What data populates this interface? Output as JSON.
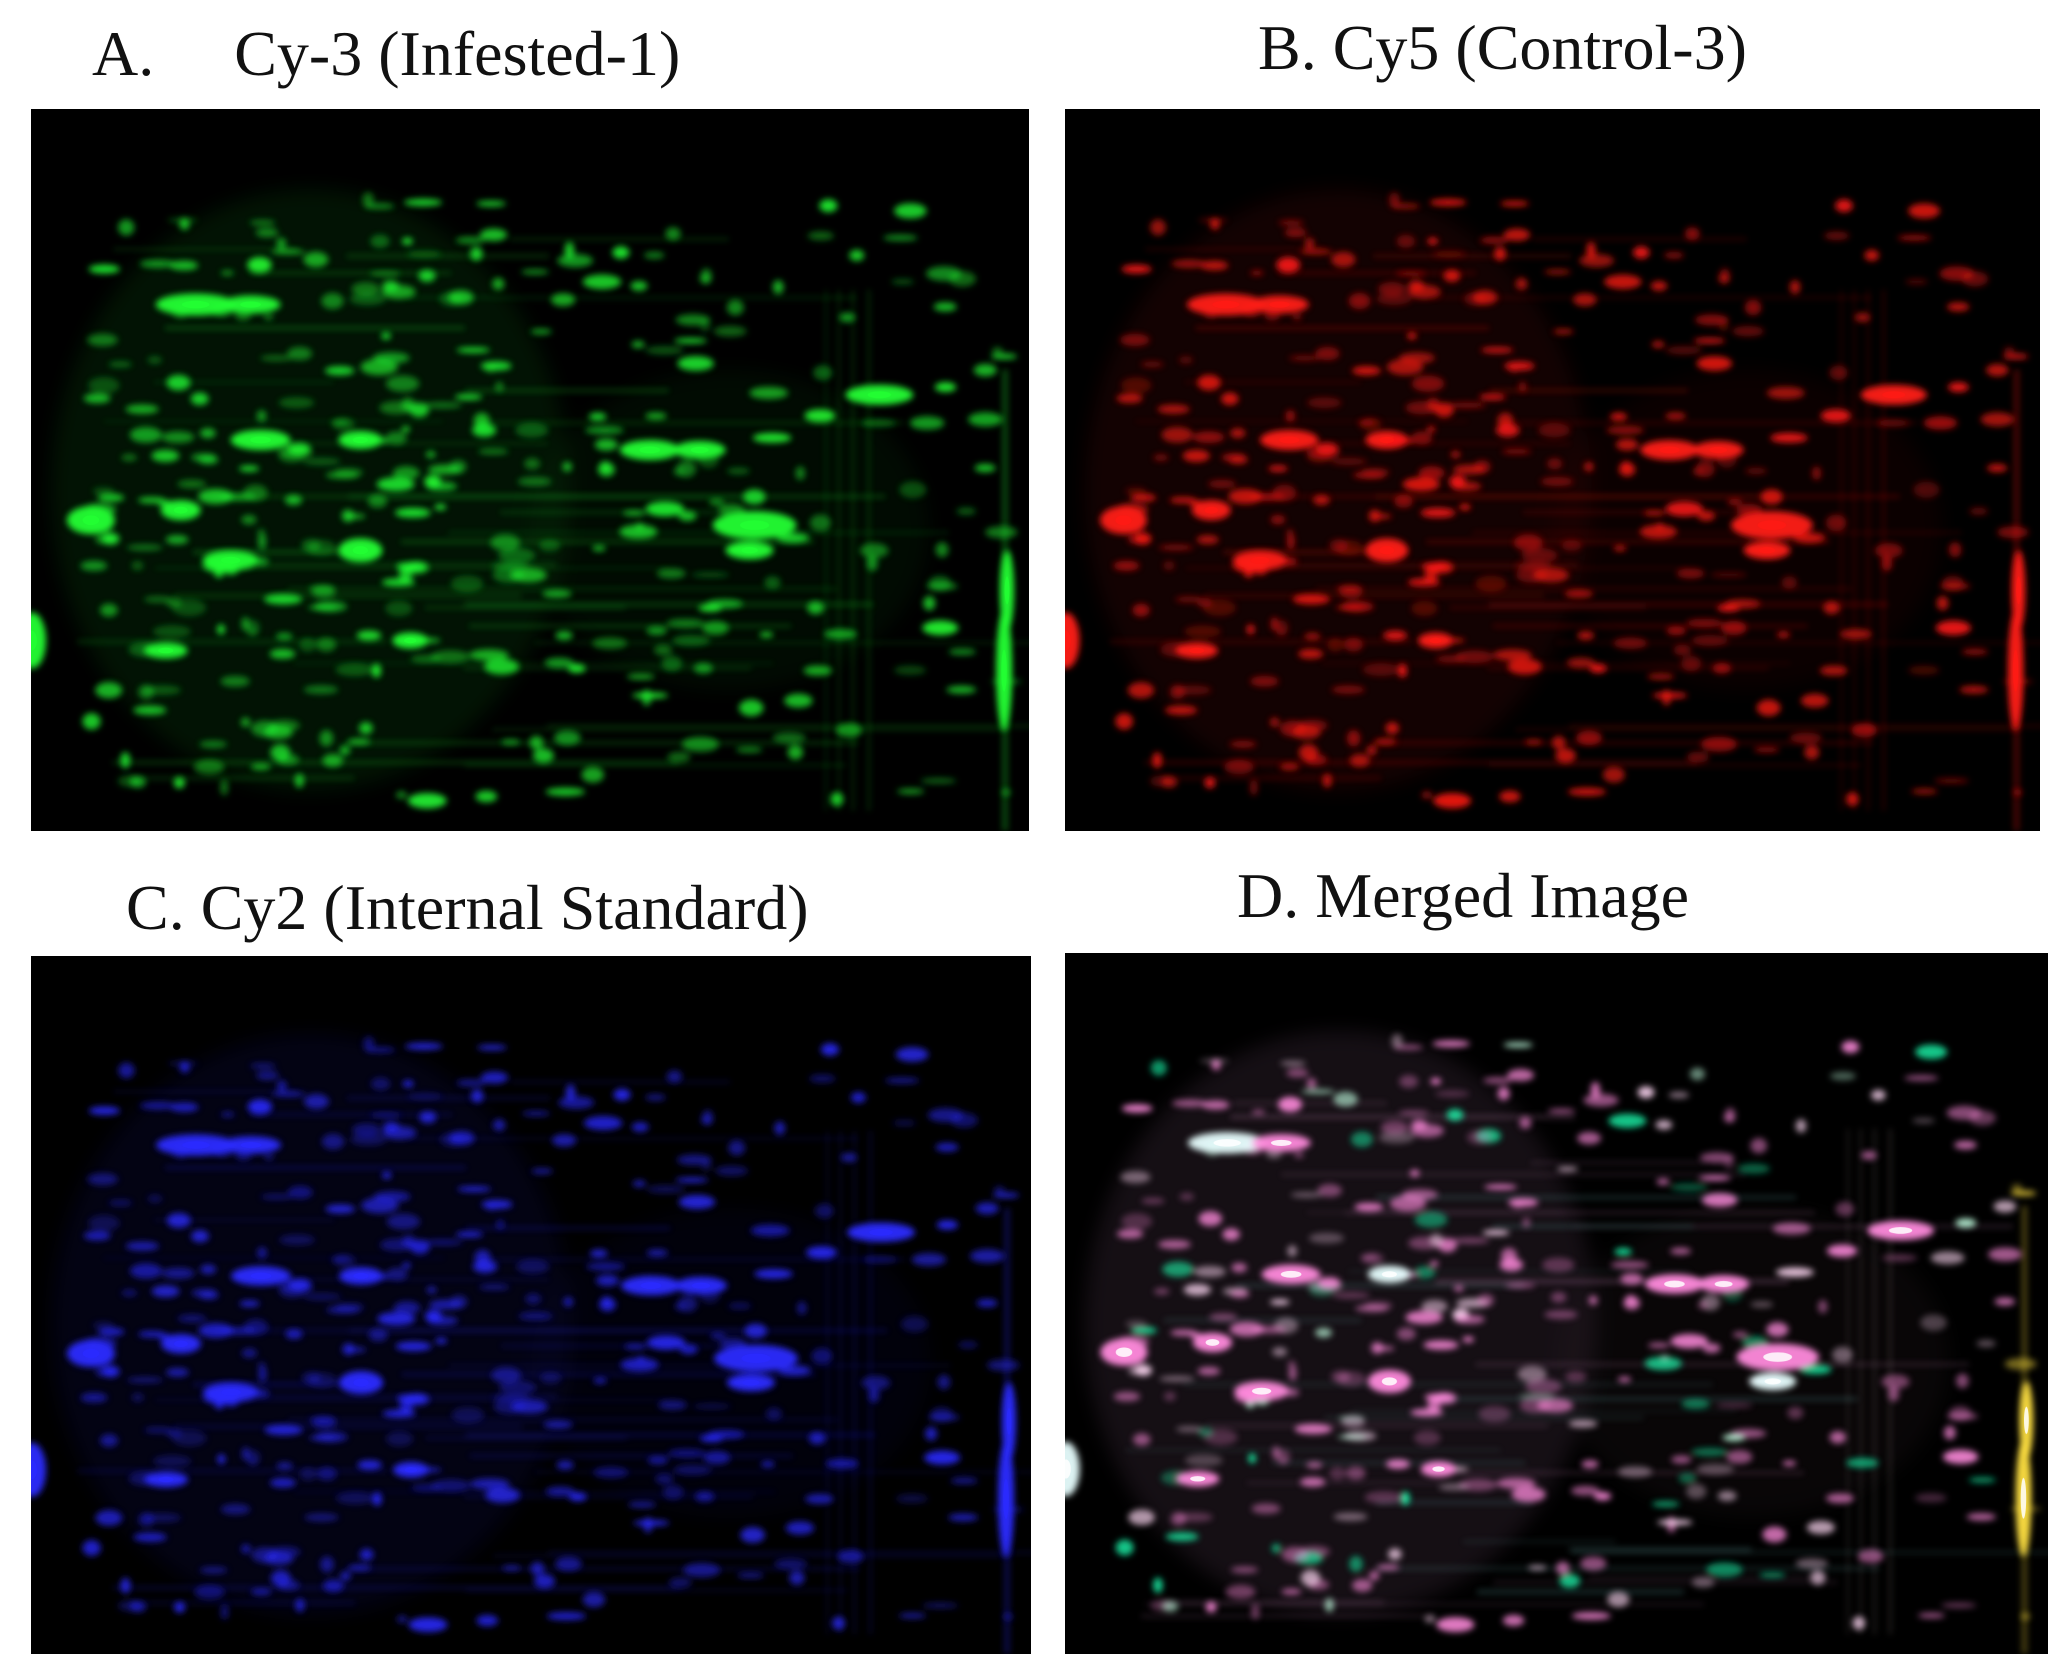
{
  "panels": [
    {
      "id": "a",
      "title": "A.     Cy-3 (Infested-1)",
      "channel": "Cy3",
      "color": "#22ff33"
    },
    {
      "id": "b",
      "title": "B. Cy5 (Control-3)",
      "channel": "Cy5",
      "color": "#ff1a14"
    },
    {
      "id": "c",
      "title": "C. Cy2 (Internal Standard)",
      "channel": "Cy2",
      "color": "#2a2aff"
    },
    {
      "id": "d",
      "title": "D. Merged Image",
      "channel": "merged",
      "color": "#ff8adc"
    }
  ],
  "colors": {
    "background": "#ffffff",
    "gel_background": "#000000",
    "merged_accent_green": "#19ffb0",
    "merged_accent_yellow": "#ffe040"
  }
}
